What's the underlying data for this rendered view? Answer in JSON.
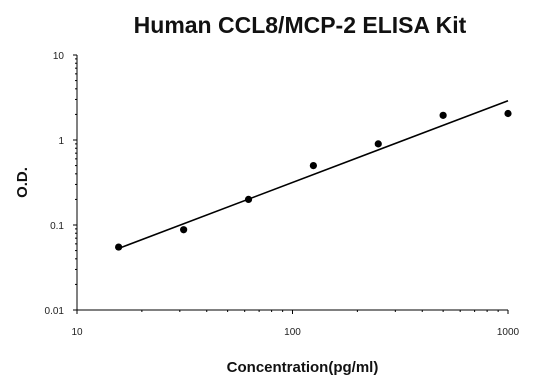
{
  "chart_data": {
    "type": "scatter",
    "title": "Human CCL8/MCP-2 ELISA Kit",
    "xlabel": "Concentration(pg/ml)",
    "ylabel": "O.D.",
    "x_scale": "log",
    "y_scale": "log",
    "xlim": [
      10,
      1000
    ],
    "ylim": [
      0.01,
      10
    ],
    "x_ticks": [
      10,
      100,
      1000
    ],
    "x_tick_labels": [
      "10",
      "100",
      "1000"
    ],
    "y_ticks": [
      0.01,
      0.1,
      1,
      10
    ],
    "y_tick_labels": [
      "0.01",
      "0.1",
      "1",
      "10"
    ],
    "grid": false,
    "points": [
      {
        "x": 15.6,
        "y": 0.055
      },
      {
        "x": 31.25,
        "y": 0.088
      },
      {
        "x": 62.5,
        "y": 0.2
      },
      {
        "x": 125,
        "y": 0.5
      },
      {
        "x": 250,
        "y": 0.9
      },
      {
        "x": 500,
        "y": 1.95
      },
      {
        "x": 1000,
        "y": 2.05
      }
    ],
    "fit_line": {
      "x": [
        15.6,
        1000
      ],
      "y": [
        0.053,
        2.9
      ]
    }
  }
}
